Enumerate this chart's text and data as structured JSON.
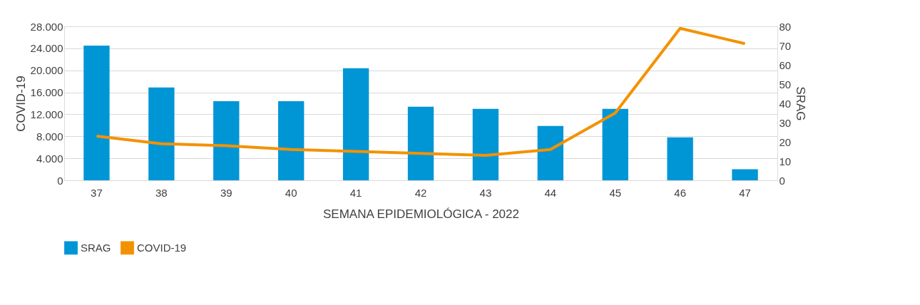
{
  "chart_data": {
    "type": "bar",
    "xlabel": "SEMANA EPIDEMIOLÓGICA - 2022",
    "ylabel": "COVID-19",
    "y2label": "SRAG",
    "categories": [
      "37",
      "38",
      "39",
      "40",
      "41",
      "42",
      "43",
      "44",
      "45",
      "46",
      "47"
    ],
    "series": [
      {
        "name": "SRAG",
        "type": "bar",
        "color": "#0096d6",
        "values": [
          24500,
          16900,
          14400,
          14400,
          20400,
          13400,
          13000,
          9900,
          13000,
          7800,
          2000
        ]
      },
      {
        "name": "COVID-19",
        "type": "line",
        "axis": "y2",
        "color": "#f39200",
        "values": [
          23,
          19,
          18,
          16,
          15,
          14,
          13,
          16,
          35,
          79,
          71
        ]
      }
    ],
    "ylim": [
      0,
      28000
    ],
    "yticks": [
      {
        "value": 0,
        "label": "0"
      },
      {
        "value": 4000,
        "label": "4.000"
      },
      {
        "value": 8000,
        "label": "8.000"
      },
      {
        "value": 12000,
        "label": "12.000"
      },
      {
        "value": 16000,
        "label": "16.000"
      },
      {
        "value": 20000,
        "label": "20.000"
      },
      {
        "value": 24000,
        "label": "24.000"
      },
      {
        "value": 28000,
        "label": "28.000"
      }
    ],
    "y2lim": [
      0,
      80
    ],
    "y2ticks": [
      0,
      10,
      20,
      30,
      40,
      50,
      60,
      70,
      80
    ],
    "grid": "y",
    "legend": "bottom",
    "line_style": "solid",
    "marker": "none"
  }
}
